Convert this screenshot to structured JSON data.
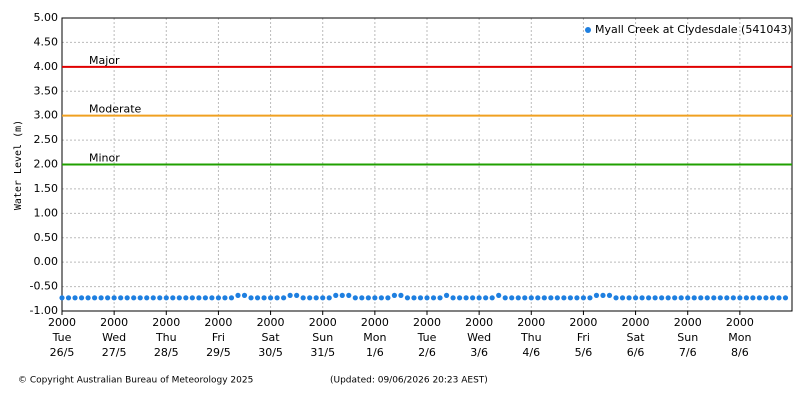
{
  "chart_data": {
    "type": "scatter",
    "y_label": "Water Level (m)",
    "ylim": [
      -1,
      5
    ],
    "yticks": [
      {
        "value": 5,
        "label": "5.00"
      },
      {
        "value": 4.5,
        "label": "4.50"
      },
      {
        "value": 4,
        "label": "4.00"
      },
      {
        "value": 3.5,
        "label": "3.50"
      },
      {
        "value": 3,
        "label": "3.00"
      },
      {
        "value": 2.5,
        "label": "2.50"
      },
      {
        "value": 2,
        "label": "2.00"
      },
      {
        "value": 1.5,
        "label": "1.50"
      },
      {
        "value": 1,
        "label": "1.00"
      },
      {
        "value": 0.5,
        "label": "0.50"
      },
      {
        "value": 0,
        "label": "0.00"
      },
      {
        "value": -0.5,
        "label": "-0.50"
      },
      {
        "value": -1,
        "label": "-1.00"
      }
    ],
    "xlim": [
      0,
      14
    ],
    "xticks": [
      {
        "value": 0,
        "label": [
          "2000",
          "Tue",
          "26/5"
        ]
      },
      {
        "value": 1,
        "label": [
          "2000",
          "Wed",
          "27/5"
        ]
      },
      {
        "value": 2,
        "label": [
          "2000",
          "Thu",
          "28/5"
        ]
      },
      {
        "value": 3,
        "label": [
          "2000",
          "Fri",
          "29/5"
        ]
      },
      {
        "value": 4,
        "label": [
          "2000",
          "Sat",
          "30/5"
        ]
      },
      {
        "value": 5,
        "label": [
          "2000",
          "Sun",
          "31/5"
        ]
      },
      {
        "value": 6,
        "label": [
          "2000",
          "Mon",
          "1/6"
        ]
      },
      {
        "value": 7,
        "label": [
          "2000",
          "Tue",
          "2/6"
        ]
      },
      {
        "value": 8,
        "label": [
          "2000",
          "Wed",
          "3/6"
        ]
      },
      {
        "value": 9,
        "label": [
          "2000",
          "Thu",
          "4/6"
        ]
      },
      {
        "value": 10,
        "label": [
          "2000",
          "Fri",
          "5/6"
        ]
      },
      {
        "value": 11,
        "label": [
          "2000",
          "Sat",
          "6/6"
        ]
      },
      {
        "value": 12,
        "label": [
          "2000",
          "Sun",
          "7/6"
        ]
      },
      {
        "value": 13,
        "label": [
          "2000",
          "Mon",
          "8/6"
        ]
      }
    ],
    "grid": true,
    "legend": "top-right",
    "thresholds": [
      {
        "label": "Major",
        "value": 4,
        "color": "#e00000"
      },
      {
        "label": "Moderate",
        "value": 3,
        "color": "#f0a020"
      },
      {
        "label": "Minor",
        "value": 2,
        "color": "#20a000"
      }
    ],
    "series": [
      {
        "name": "Myall Creek at Clydesdale (541043)",
        "color": "#1e7fe0",
        "x": [
          0,
          0.125,
          0.25,
          0.375,
          0.5,
          0.625,
          0.75,
          0.875,
          1,
          1.125,
          1.25,
          1.375,
          1.5,
          1.625,
          1.75,
          1.875,
          2,
          2.125,
          2.25,
          2.375,
          2.5,
          2.625,
          2.75,
          2.875,
          3,
          3.125,
          3.25,
          3.375,
          3.5,
          3.625,
          3.75,
          3.875,
          4,
          4.125,
          4.25,
          4.375,
          4.5,
          4.625,
          4.75,
          4.875,
          5,
          5.125,
          5.25,
          5.375,
          5.5,
          5.625,
          5.75,
          5.875,
          6,
          6.125,
          6.25,
          6.375,
          6.5,
          6.625,
          6.75,
          6.875,
          7,
          7.125,
          7.25,
          7.375,
          7.5,
          7.625,
          7.75,
          7.875,
          8,
          8.125,
          8.25,
          8.375,
          8.5,
          8.625,
          8.75,
          8.875,
          9,
          9.125,
          9.25,
          9.375,
          9.5,
          9.625,
          9.75,
          9.875,
          10,
          10.125,
          10.25,
          10.375,
          10.5,
          10.625,
          10.75,
          10.875,
          11,
          11.125,
          11.25,
          11.375,
          11.5,
          11.625,
          11.75,
          11.875,
          12,
          12.125,
          12.25,
          12.375,
          12.5,
          12.625,
          12.75,
          12.875,
          13,
          13.125,
          13.25,
          13.375,
          13.5,
          13.625,
          13.75,
          13.875
        ],
        "values": [
          -0.73,
          -0.73,
          -0.73,
          -0.73,
          -0.73,
          -0.73,
          -0.73,
          -0.73,
          -0.73,
          -0.73,
          -0.73,
          -0.73,
          -0.73,
          -0.73,
          -0.73,
          -0.73,
          -0.73,
          -0.73,
          -0.73,
          -0.73,
          -0.73,
          -0.73,
          -0.73,
          -0.73,
          -0.73,
          -0.73,
          -0.73,
          -0.68,
          -0.68,
          -0.73,
          -0.73,
          -0.73,
          -0.73,
          -0.73,
          -0.73,
          -0.68,
          -0.68,
          -0.73,
          -0.73,
          -0.73,
          -0.73,
          -0.73,
          -0.68,
          -0.68,
          -0.68,
          -0.73,
          -0.73,
          -0.73,
          -0.73,
          -0.73,
          -0.73,
          -0.68,
          -0.68,
          -0.73,
          -0.73,
          -0.73,
          -0.73,
          -0.73,
          -0.73,
          -0.68,
          -0.73,
          -0.73,
          -0.73,
          -0.73,
          -0.73,
          -0.73,
          -0.73,
          -0.68,
          -0.73,
          -0.73,
          -0.73,
          -0.73,
          -0.73,
          -0.73,
          -0.73,
          -0.73,
          -0.73,
          -0.73,
          -0.73,
          -0.73,
          -0.73,
          -0.73,
          -0.68,
          -0.68,
          -0.68,
          -0.73,
          -0.73,
          -0.73,
          -0.73,
          -0.73,
          -0.73,
          -0.73,
          -0.73,
          -0.73,
          -0.73,
          -0.73,
          -0.73,
          -0.73,
          -0.73,
          -0.73,
          -0.73,
          -0.73,
          -0.73,
          -0.73,
          -0.73,
          -0.73,
          -0.73,
          -0.73,
          -0.73,
          -0.73,
          -0.73,
          -0.73
        ]
      }
    ]
  },
  "footer": {
    "copyright": "© Copyright Australian Bureau of Meteorology 2025",
    "updated": "(Updated: 09/06/2026 20:23 AEST)"
  }
}
